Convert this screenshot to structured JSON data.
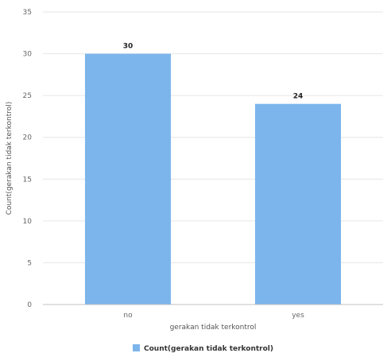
{
  "chart_data": {
    "type": "bar",
    "categories": [
      "no",
      "yes"
    ],
    "series": [
      {
        "name": "Count(gerakan tidak terkontrol)",
        "values": [
          30,
          24
        ],
        "color": "#7cb5ec"
      }
    ],
    "data_labels": [
      "30",
      "24"
    ],
    "xlabel": "gerakan tidak terkontrol",
    "ylabel": "Count(gerakan tidak terkontrol)",
    "ylim": [
      0,
      35
    ],
    "yticks": [
      0,
      5,
      10,
      15,
      20,
      25,
      30,
      35
    ],
    "grid": true,
    "legend_position": "bottom-center"
  }
}
